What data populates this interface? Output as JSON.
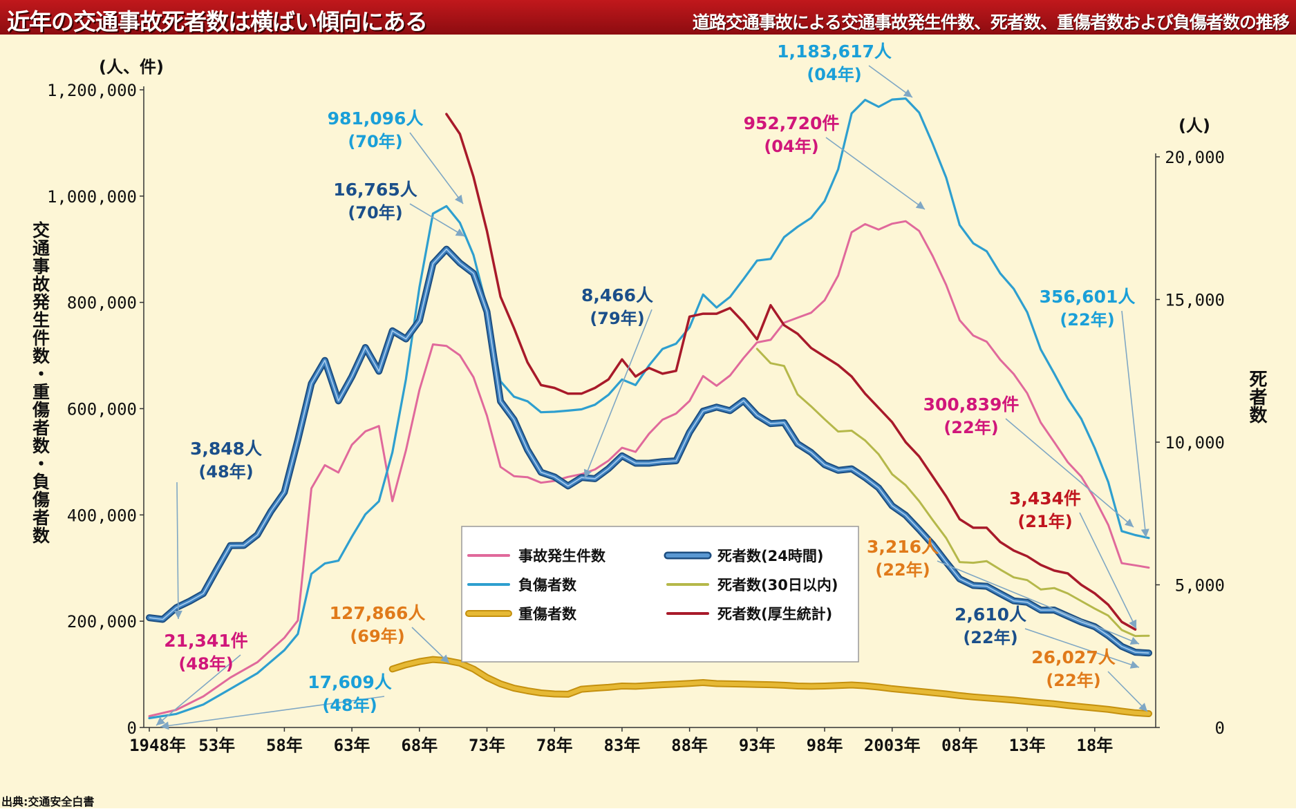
{
  "header": {
    "title": "近年の交通事故死者数は横ばい傾向にある",
    "subtitle": "道路交通事故による交通事故発生件数、死者数、重傷者数および負傷者数の推移"
  },
  "source": "出典:交通安全白書",
  "colors": {
    "accidents": "#e0699b",
    "injured": "#2e9fcf",
    "serious": "#d8a519",
    "deaths24": "#2f6da8",
    "deaths30": "#b5b84a",
    "deathsHealth": "#a81a2a",
    "annotPink": "#d0167a",
    "annotCyan": "#1a9fd8",
    "annotNavy": "#1b4f8a",
    "annotRed": "#c0151f",
    "annotOrange": "#e07a1a"
  },
  "chart_data": {
    "type": "line",
    "left_axis": {
      "unit": "(人、件)",
      "label": "交通事故発生件数・重傷者数・負傷者数",
      "ylim": [
        0,
        1200000
      ],
      "ticks": [
        0,
        200000,
        400000,
        600000,
        800000,
        1000000,
        1200000
      ],
      "tick_labels": [
        "0",
        "200,000",
        "400,000",
        "600,000",
        "800,000",
        "1,000,000",
        "1,200,000"
      ]
    },
    "right_axis": {
      "unit": "(人)",
      "label": "死者数",
      "ylim": [
        0,
        20000
      ],
      "ticks": [
        0,
        5000,
        10000,
        15000,
        20000
      ],
      "tick_labels": [
        "0",
        "5,000",
        "10,000",
        "15,000",
        "20,000"
      ]
    },
    "x_axis": {
      "xlim": [
        1948,
        2022
      ],
      "ticks": [
        1948,
        1953,
        1958,
        1963,
        1968,
        1973,
        1978,
        1983,
        1988,
        1993,
        1998,
        2003,
        2008,
        2013,
        2018
      ],
      "tick_labels": [
        "1948年",
        "53年",
        "58年",
        "63年",
        "68年",
        "73年",
        "78年",
        "83年",
        "88年",
        "93年",
        "98年",
        "2003年",
        "08年",
        "13年",
        "18年"
      ]
    },
    "legend": {
      "position": "center",
      "items": [
        {
          "name": "事故発生件数",
          "series": "accidents"
        },
        {
          "name": "死者数(24時間)",
          "series": "deaths24"
        },
        {
          "name": "負傷者数",
          "series": "injured"
        },
        {
          "name": "死者数(30日以内)",
          "series": "deaths30"
        },
        {
          "name": "重傷者数",
          "series": "serious"
        },
        {
          "name": "死者数(厚生統計)",
          "series": "deathsHealth"
        }
      ]
    },
    "series": [
      {
        "id": "accidents",
        "name": "事故発生件数",
        "axis": "left",
        "x": [
          1948,
          1950,
          1952,
          1954,
          1956,
          1958,
          1959,
          1960,
          1961,
          1962,
          1963,
          1964,
          1965,
          1966,
          1967,
          1968,
          1969,
          1970,
          1971,
          1972,
          1973,
          1974,
          1975,
          1976,
          1977,
          1978,
          1979,
          1980,
          1981,
          1982,
          1983,
          1984,
          1985,
          1986,
          1987,
          1988,
          1989,
          1990,
          1991,
          1992,
          1993,
          1994,
          1995,
          1996,
          1997,
          1998,
          1999,
          2000,
          2001,
          2002,
          2003,
          2004,
          2005,
          2006,
          2007,
          2008,
          2009,
          2010,
          2011,
          2012,
          2013,
          2014,
          2015,
          2016,
          2017,
          2018,
          2019,
          2020,
          2021,
          2022
        ],
        "values": [
          21341,
          33212,
          58487,
          93869,
          122691,
          168799,
          201292,
          449917,
          493693,
          479825,
          531966,
          557183,
          567286,
          425944,
          521481,
          635056,
          720880,
          718080,
          700290,
          659283,
          586713,
          490452,
          472938,
          471041,
          460649,
          464037,
          471573,
          476677,
          485578,
          502261,
          526362,
          518642,
          552788,
          579190,
          590723,
          614481,
          661363,
          643097,
          662388,
          695345,
          724675,
          729461,
          761794,
          771085,
          780401,
          803882,
          850363,
          931950,
          947253,
          936950,
          947993,
          952720,
          934346,
          887257,
          832704,
          766394,
          737637,
          725924,
          692084,
          665157,
          629033,
          573842,
          536899,
          499201,
          472165,
          430601,
          381237,
          309178,
          305196,
          300839
        ]
      },
      {
        "id": "injured",
        "name": "負傷者数",
        "axis": "left",
        "x": [
          1948,
          1950,
          1952,
          1954,
          1956,
          1958,
          1959,
          1960,
          1961,
          1962,
          1963,
          1964,
          1965,
          1966,
          1967,
          1968,
          1969,
          1970,
          1971,
          1972,
          1973,
          1974,
          1975,
          1976,
          1977,
          1978,
          1979,
          1980,
          1981,
          1982,
          1983,
          1984,
          1985,
          1986,
          1987,
          1988,
          1989,
          1990,
          1991,
          1992,
          1993,
          1994,
          1995,
          1996,
          1997,
          1998,
          1999,
          2000,
          2001,
          2002,
          2003,
          2004,
          2005,
          2006,
          2007,
          2008,
          2009,
          2010,
          2011,
          2012,
          2013,
          2014,
          2015,
          2016,
          2017,
          2018,
          2019,
          2020,
          2021,
          2022
        ],
        "values": [
          17609,
          25450,
          43321,
          72390,
          102072,
          145432,
          175951,
          289156,
          308697,
          313813,
          359089,
          401117,
          425666,
          517775,
          655377,
          828071,
          967000,
          981096,
          949689,
          889198,
          789948,
          651420,
          622467,
          613957,
          593211,
          594116,
          596282,
          598719,
          607346,
          626192,
          654822,
          644321,
          681346,
          712330,
          722179,
          752845,
          814832,
          790295,
          810245,
          844003,
          878633,
          881723,
          922677,
          942203,
          958925,
          990675,
          1050399,
          1155697,
          1181039,
          1168029,
          1181681,
          1183617,
          1157113,
          1098199,
          1034652,
          945504,
          911215,
          896208,
          854613,
          825396,
          781492,
          711374,
          666023,
          618853,
          580850,
          525846,
          461775,
          369476,
          362131,
          356601
        ]
      },
      {
        "id": "serious",
        "name": "重傷者数",
        "axis": "left",
        "x": [
          1966,
          1967,
          1968,
          1969,
          1970,
          1971,
          1972,
          1973,
          1974,
          1975,
          1976,
          1977,
          1978,
          1979,
          1980,
          1981,
          1982,
          1983,
          1984,
          1985,
          1986,
          1987,
          1988,
          1989,
          1990,
          1991,
          1992,
          1993,
          1994,
          1995,
          1996,
          1997,
          1998,
          1999,
          2000,
          2001,
          2002,
          2003,
          2004,
          2005,
          2006,
          2007,
          2008,
          2009,
          2010,
          2011,
          2012,
          2013,
          2014,
          2015,
          2016,
          2017,
          2018,
          2019,
          2020,
          2021,
          2022
        ],
        "values": [
          110000,
          118000,
          124000,
          127866,
          126000,
          121000,
          110000,
          94000,
          82000,
          74000,
          69000,
          65000,
          63000,
          62500,
          72000,
          74000,
          75500,
          78000,
          77500,
          79000,
          80500,
          81500,
          83000,
          84500,
          82500,
          82000,
          81500,
          81000,
          80500,
          79500,
          78000,
          77500,
          78000,
          79000,
          80000,
          78500,
          76000,
          73000,
          70500,
          68000,
          65500,
          63000,
          60000,
          57500,
          55500,
          53500,
          51500,
          49000,
          46500,
          44500,
          41500,
          39000,
          36500,
          34000,
          30500,
          27500,
          26027
        ]
      },
      {
        "id": "deaths24",
        "name": "死者数(24時間)",
        "axis": "right",
        "x": [
          1948,
          1949,
          1950,
          1951,
          1952,
          1953,
          1954,
          1955,
          1956,
          1957,
          1958,
          1959,
          1960,
          1961,
          1962,
          1963,
          1964,
          1965,
          1966,
          1967,
          1968,
          1969,
          1970,
          1971,
          1972,
          1973,
          1974,
          1975,
          1976,
          1977,
          1978,
          1979,
          1980,
          1981,
          1982,
          1983,
          1984,
          1985,
          1986,
          1987,
          1988,
          1989,
          1990,
          1991,
          1992,
          1993,
          1994,
          1995,
          1996,
          1997,
          1998,
          1999,
          2000,
          2001,
          2002,
          2003,
          2004,
          2005,
          2006,
          2007,
          2008,
          2009,
          2010,
          2011,
          2012,
          2013,
          2014,
          2015,
          2016,
          2017,
          2018,
          2019,
          2020,
          2021,
          2022
        ],
        "values": [
          3848,
          3790,
          4202,
          4429,
          4696,
          5544,
          6374,
          6379,
          6751,
          7575,
          8248,
          10079,
          12055,
          12865,
          11445,
          12301,
          13318,
          12484,
          13904,
          13618,
          14256,
          16257,
          16765,
          16278,
          15918,
          14574,
          11432,
          10792,
          9734,
          8945,
          8783,
          8466,
          8760,
          8719,
          9073,
          9520,
          9262,
          9261,
          9317,
          9347,
          10344,
          11086,
          11227,
          11105,
          11452,
          10942,
          10649,
          10684,
          9942,
          9640,
          9211,
          9012,
          9066,
          8757,
          8396,
          7768,
          7436,
          6937,
          6415,
          5796,
          5209,
          4979,
          4948,
          4691,
          4438,
          4388,
          4113,
          4117,
          3904,
          3694,
          3532,
          3215,
          2839,
          2636,
          2610
        ]
      },
      {
        "id": "deaths30",
        "name": "死者数(30日以内)",
        "axis": "right",
        "x": [
          1993,
          1994,
          1995,
          1996,
          1997,
          1998,
          1999,
          2000,
          2001,
          2002,
          2003,
          2004,
          2005,
          2006,
          2007,
          2008,
          2009,
          2010,
          2011,
          2012,
          2013,
          2014,
          2015,
          2016,
          2017,
          2018,
          2019,
          2020,
          2021,
          2022
        ],
        "values": [
          13269,
          12768,
          12670,
          11674,
          11254,
          10805,
          10372,
          10403,
          10060,
          9575,
          8877,
          8492,
          7931,
          7272,
          6639,
          5796,
          5772,
          5828,
          5535,
          5261,
          5165,
          4838,
          4885,
          4698,
          4431,
          4166,
          3920,
          3416,
          3205,
          3216
        ]
      },
      {
        "id": "deathsHealth",
        "name": "死者数(厚生統計)",
        "axis": "right",
        "x": [
          1970,
          1971,
          1972,
          1973,
          1974,
          1975,
          1976,
          1977,
          1978,
          1979,
          1980,
          1981,
          1982,
          1983,
          1984,
          1985,
          1986,
          1987,
          1988,
          1989,
          1990,
          1991,
          1992,
          1993,
          1994,
          1995,
          1996,
          1997,
          1998,
          1999,
          2000,
          2001,
          2002,
          2003,
          2004,
          2005,
          2006,
          2007,
          2008,
          2009,
          2010,
          2011,
          2012,
          2013,
          2014,
          2015,
          2016,
          2017,
          2018,
          2019,
          2020,
          2021
        ],
        "values": [
          21500,
          20800,
          19300,
          17400,
          15100,
          14000,
          12800,
          12000,
          11900,
          11700,
          11700,
          11900,
          12200,
          12900,
          12300,
          12600,
          12400,
          12500,
          14400,
          14500,
          14500,
          14700,
          14200,
          13600,
          14800,
          14100,
          13800,
          13300,
          13000,
          12700,
          12300,
          11700,
          11200,
          10700,
          10000,
          9500,
          8800,
          8100,
          7300,
          7000,
          7000,
          6500,
          6200,
          6000,
          5700,
          5500,
          5400,
          5000,
          4700,
          4300,
          3700,
          3434
        ]
      }
    ],
    "annotations": [
      {
        "id": "accidents-48",
        "series": "accidents",
        "year": 1948,
        "value": "21,341件",
        "period": "(48年)",
        "color": "annotPink"
      },
      {
        "id": "injured-48",
        "series": "injured",
        "year": 1948,
        "value": "17,609人",
        "period": "(48年)",
        "color": "annotCyan"
      },
      {
        "id": "deaths-48",
        "series": "deaths24",
        "year": 1948,
        "value": "3,848人",
        "period": "(48年)",
        "color": "annotNavy"
      },
      {
        "id": "injured-70",
        "series": "injured",
        "year": 1970,
        "value": "981,096人",
        "period": "(70年)",
        "color": "annotCyan"
      },
      {
        "id": "deaths-70",
        "series": "deaths24",
        "year": 1970,
        "value": "16,765人",
        "period": "(70年)",
        "color": "annotNavy"
      },
      {
        "id": "serious-69",
        "series": "serious",
        "year": 1969,
        "value": "127,866人",
        "period": "(69年)",
        "color": "annotOrange"
      },
      {
        "id": "deaths-79",
        "series": "deaths24",
        "year": 1979,
        "value": "8,466人",
        "period": "(79年)",
        "color": "annotNavy"
      },
      {
        "id": "injured-04",
        "series": "injured",
        "year": 2004,
        "value": "1,183,617人",
        "period": "(04年)",
        "color": "annotCyan"
      },
      {
        "id": "accidents-04",
        "series": "accidents",
        "year": 2004,
        "value": "952,720件",
        "period": "(04年)",
        "color": "annotPink"
      },
      {
        "id": "injured-22",
        "series": "injured",
        "year": 2022,
        "value": "356,601人",
        "period": "(22年)",
        "color": "annotCyan"
      },
      {
        "id": "accidents-22",
        "series": "accidents",
        "year": 2022,
        "value": "300,839件",
        "period": "(22年)",
        "color": "annotPink"
      },
      {
        "id": "health-21",
        "series": "deathsHealth",
        "year": 2021,
        "value": "3,434件",
        "period": "(21年)",
        "color": "annotRed"
      },
      {
        "id": "deaths30-22",
        "series": "deaths30",
        "year": 2022,
        "value": "3,216人",
        "period": "(22年)",
        "color": "annotOrange"
      },
      {
        "id": "deaths24-22",
        "series": "deaths24",
        "year": 2022,
        "value": "2,610人",
        "period": "(22年)",
        "color": "annotNavy"
      },
      {
        "id": "serious-22",
        "series": "serious",
        "year": 2022,
        "value": "26,027人",
        "period": "(22年)",
        "color": "annotOrange"
      }
    ]
  }
}
